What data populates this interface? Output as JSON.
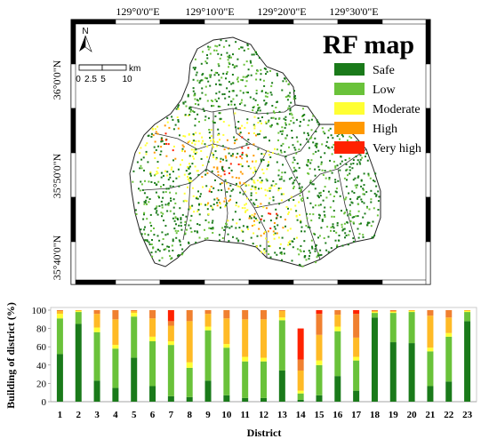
{
  "map": {
    "title": "RF map",
    "top_labels": [
      "129°0'0\"E",
      "129°10'0\"E",
      "129°20'0\"E",
      "129°30'0\"E"
    ],
    "left_labels": [
      "36°0'0\"N",
      "35°50'0\"N",
      "35°40'0\"N"
    ],
    "north_label": "N",
    "scale_labels": [
      "0",
      "2.5",
      "5",
      "10"
    ],
    "scale_unit": "km",
    "legend": [
      {
        "label": "Safe",
        "color": "#1a7a1a"
      },
      {
        "label": "Low",
        "color": "#6ac23a"
      },
      {
        "label": "Moderate",
        "color": "#ffff33"
      },
      {
        "label": "High",
        "color": "#ff9900"
      },
      {
        "label": "Very high",
        "color": "#ff2200"
      }
    ]
  },
  "chart_data": {
    "type": "bar",
    "stacked": true,
    "xlabel": "District",
    "ylabel": "Building of district (%)",
    "ylim": [
      0,
      100
    ],
    "yticks": [
      0,
      20,
      40,
      60,
      80,
      100
    ],
    "categories": [
      "1",
      "2",
      "3",
      "4",
      "5",
      "6",
      "7",
      "8",
      "9",
      "10",
      "11",
      "12",
      "13",
      "14",
      "15",
      "16",
      "17",
      "18",
      "19",
      "20",
      "21",
      "22",
      "23"
    ],
    "series": [
      {
        "color": "#1a7a1a",
        "values": [
          52,
          85,
          23,
          15,
          48,
          17,
          6,
          5,
          23,
          7,
          4,
          4,
          34,
          2,
          7,
          28,
          12,
          92,
          65,
          64,
          17,
          22,
          88
        ]
      },
      {
        "color": "#6ac23a",
        "values": [
          39,
          13,
          53,
          43,
          45,
          49,
          56,
          32,
          55,
          52,
          40,
          40,
          55,
          7,
          33,
          49,
          33,
          5,
          32,
          34,
          38,
          49,
          10
        ]
      },
      {
        "color": "#ffff33",
        "values": [
          5,
          1,
          5,
          4,
          4,
          5,
          4,
          6,
          4,
          4,
          5,
          4,
          3,
          3,
          5,
          5,
          4,
          1,
          1,
          1,
          4,
          4,
          1
        ]
      },
      {
        "color": "#ffba26",
        "values": [
          3,
          1,
          15,
          28,
          2,
          20,
          17,
          45,
          14,
          28,
          41,
          42,
          7,
          22,
          28,
          13,
          21,
          1,
          1,
          1,
          35,
          17,
          1
        ]
      },
      {
        "color": "#f08030",
        "values": [
          1,
          0,
          4,
          10,
          1,
          9,
          5,
          12,
          4,
          9,
          10,
          10,
          1,
          12,
          23,
          5,
          26,
          1,
          1,
          0,
          6,
          8,
          0
        ]
      },
      {
        "color": "#ff2200",
        "values": [
          0,
          0,
          0,
          0,
          0,
          0,
          12,
          0,
          0,
          0,
          0,
          0,
          0,
          34,
          4,
          0,
          4,
          0,
          0,
          0,
          0,
          0,
          0
        ]
      }
    ]
  }
}
